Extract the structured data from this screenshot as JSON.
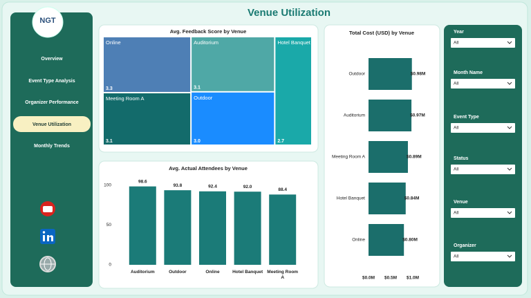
{
  "header": {
    "title": "Venue Utilization"
  },
  "logo": {
    "text": "NGT"
  },
  "nav": [
    "Overview",
    "Event Type Analysis",
    "Organizer Performance",
    "Venue Utilization",
    "Monthly Trends"
  ],
  "filters": [
    {
      "label": "Year",
      "value": "All"
    },
    {
      "label": "Month Name",
      "value": "All"
    },
    {
      "label": "Event Type",
      "value": "All"
    },
    {
      "label": "Status",
      "value": "All"
    },
    {
      "label": "Venue",
      "value": "All"
    },
    {
      "label": "Organizer",
      "value": "All"
    }
  ],
  "chart_data": [
    {
      "type": "treemap",
      "title": "Avg. Feedback Score by Venue",
      "categories": [
        "Online",
        "Auditorium",
        "Hotel Banquet",
        "Meeting Room A",
        "Outdoor"
      ],
      "values": [
        3.3,
        3.1,
        2.7,
        3.1,
        3.0
      ],
      "value_labels": [
        "3.3",
        "3.1",
        "2.7",
        "3.1",
        "3.0"
      ],
      "colors": [
        "#4e7fb5",
        "#4fa8a6",
        "#1aa9a9",
        "#136b6b",
        "#1a8cff"
      ]
    },
    {
      "type": "bar",
      "title": "Avg. Actual Attendees by Venue",
      "categories": [
        "Auditorium",
        "Outdoor",
        "Online",
        "Hotel Banquet",
        "Meeting Room A"
      ],
      "values": [
        98.6,
        93.8,
        92.4,
        92.0,
        88.4
      ],
      "value_labels": [
        "98.6",
        "93.8",
        "92.4",
        "92.0",
        "88.4"
      ],
      "color": "#1b7b78",
      "ylim": [
        0,
        100
      ],
      "yticks": [
        0,
        50,
        100
      ],
      "grid": false
    },
    {
      "type": "hbar",
      "title": "Total Cost (USD) by Venue",
      "categories": [
        "Outdoor",
        "Auditorium",
        "Meeting Room A",
        "Hotel Banquet",
        "Online"
      ],
      "values": [
        980000,
        970000,
        890000,
        840000,
        800000
      ],
      "value_labels": [
        "$0.98M",
        "$0.97M",
        "$0.89M",
        "$0.84M",
        "$0.80M"
      ],
      "color": "#1b6e6b",
      "xlim": [
        0,
        1000000
      ],
      "xticks": [
        {
          "value": 0,
          "label": "$0.0M"
        },
        {
          "value": 500000,
          "label": "$0.5M"
        },
        {
          "value": 1000000,
          "label": "$1.0M"
        }
      ]
    }
  ]
}
